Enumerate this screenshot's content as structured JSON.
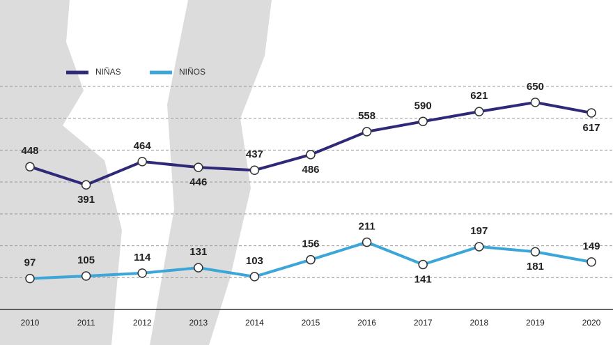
{
  "chart_data": {
    "type": "line",
    "categories": [
      "2010",
      "2011",
      "2012",
      "2013",
      "2014",
      "2015",
      "2016",
      "2017",
      "2018",
      "2019",
      "2020"
    ],
    "series": [
      {
        "name": "NIÑAS",
        "color": "#2f2a78",
        "values": [
          448,
          391,
          464,
          446,
          437,
          486,
          558,
          590,
          621,
          650,
          617
        ]
      },
      {
        "name": "NIÑOS",
        "color": "#3ca6d8",
        "values": [
          97,
          105,
          114,
          131,
          103,
          156,
          211,
          141,
          197,
          181,
          149
        ]
      }
    ],
    "ylim": [
      0,
      700
    ],
    "yticks": [
      100,
      200,
      300,
      400,
      500,
      600,
      700
    ],
    "grid": true
  }
}
